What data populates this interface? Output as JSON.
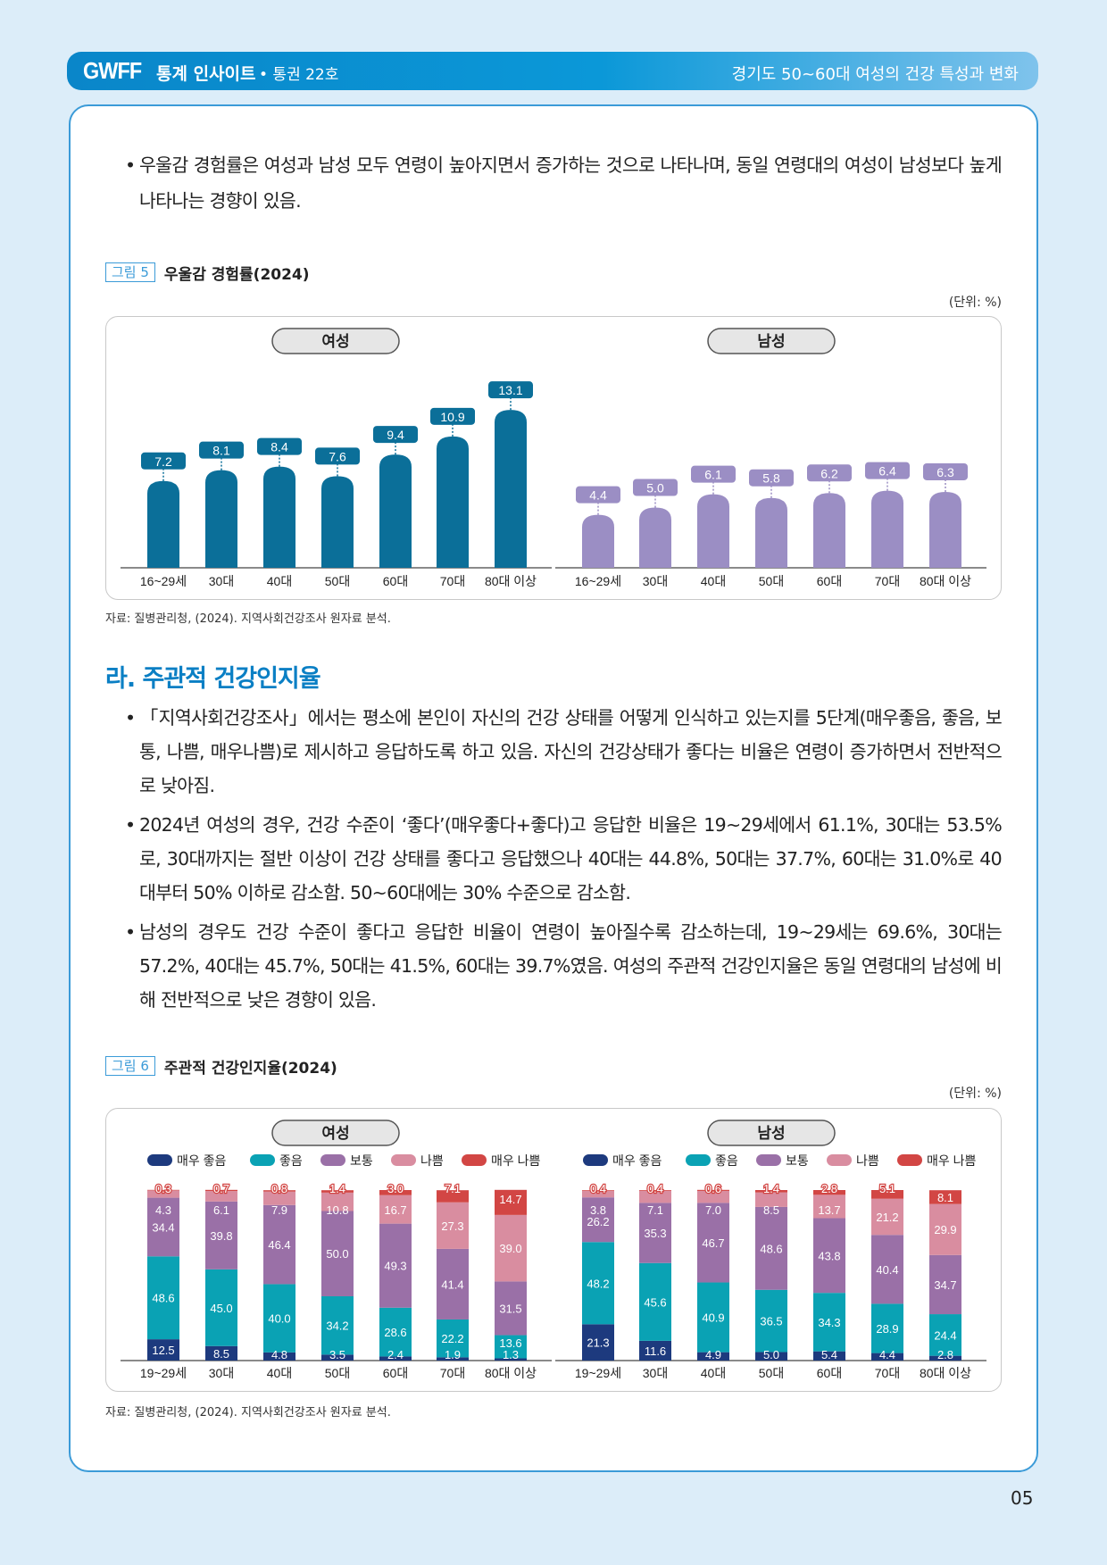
{
  "header": {
    "logo": "GWFF",
    "series": "통계 인사이트",
    "issue": "• 통권 22호",
    "title": "경기도 50~60대 여성의 건강 특성과 변화"
  },
  "intro_bullets": [
    "우울감 경험률은 여성과 남성 모두 연령이 높아지면서 증가하는 것으로 나타나며, 동일 연령대의 여성이 남성보다 높게 나타나는 경향이 있음."
  ],
  "figure5": {
    "tag": "그림 5",
    "title": "우울감 경험률(2024)",
    "unit": "(단위: %)",
    "source": "자료: 질병관리청, (2024). 지역사회건강조사 원자료 분석."
  },
  "section": {
    "heading": "라. 주관적 건강인지율",
    "bullets": [
      "「지역사회건강조사」에서는 평소에 본인이 자신의 건강 상태를 어떻게 인식하고 있는지를 5단계(매우좋음, 좋음, 보통, 나쁨, 매우나쁨)로 제시하고 응답하도록 하고 있음. 자신의 건강상태가 좋다는 비율은 연령이 증가하면서 전반적으로 낮아짐.",
      "2024년 여성의 경우, 건강 수준이 ‘좋다’(매우좋다+좋다)고 응답한 비율은 19~29세에서 61.1%, 30대는 53.5%로, 30대까지는 절반 이상이 건강 상태를 좋다고 응답했으나 40대는 44.8%, 50대는 37.7%, 60대는 31.0%로 40대부터 50% 이하로 감소함. 50~60대에는 30% 수준으로 감소함.",
      "남성의 경우도 건강 수준이 좋다고 응답한 비율이 연령이 높아질수록 감소하는데, 19~29세는 69.6%, 30대는 57.2%, 40대는 45.7%, 50대는 41.5%, 60대는 39.7%였음. 여성의 주관적 건강인지율은 동일 연령대의 남성에 비해 전반적으로 낮은 경향이 있음."
    ]
  },
  "figure6": {
    "tag": "그림 6",
    "title": "주관적 건강인지율(2024)",
    "unit": "(단위: %)",
    "source": "자료: 질병관리청, (2024). 지역사회건강조사 원자료 분석."
  },
  "page_number": "05",
  "chart_data": [
    {
      "type": "bar",
      "title": "우울감 경험률(2024)",
      "unit": "%",
      "panels": [
        {
          "name": "여성",
          "color": "#0b6f99",
          "categories": [
            "16~29세",
            "30대",
            "40대",
            "50대",
            "60대",
            "70대",
            "80대 이상"
          ],
          "values": [
            7.2,
            8.1,
            8.4,
            7.6,
            9.4,
            10.9,
            13.1
          ]
        },
        {
          "name": "남성",
          "color": "#9b8ec4",
          "categories": [
            "16~29세",
            "30대",
            "40대",
            "50대",
            "60대",
            "70대",
            "80대 이상"
          ],
          "values": [
            4.4,
            5.0,
            6.1,
            5.8,
            6.2,
            6.4,
            6.3
          ]
        }
      ]
    },
    {
      "type": "bar",
      "stacked": true,
      "title": "주관적 건강인지율(2024)",
      "unit": "%",
      "legend": "top",
      "series_names": [
        "매우 좋음",
        "좋음",
        "보통",
        "나쁨",
        "매우 나쁨"
      ],
      "colors": [
        "#1d3a7e",
        "#0aa2b4",
        "#9a70a7",
        "#d98da0",
        "#d24644"
      ],
      "panels": [
        {
          "name": "여성",
          "categories": [
            "19~29세",
            "30대",
            "40대",
            "50대",
            "60대",
            "70대",
            "80대 이상"
          ],
          "series": [
            {
              "name": "매우 좋음",
              "values": [
                12.5,
                8.5,
                4.8,
                3.5,
                2.4,
                1.9,
                1.3
              ]
            },
            {
              "name": "좋음",
              "values": [
                48.6,
                45.0,
                40.0,
                34.2,
                28.6,
                22.2,
                13.6
              ]
            },
            {
              "name": "보통",
              "values": [
                34.4,
                39.8,
                46.4,
                50.0,
                49.3,
                41.4,
                31.5
              ]
            },
            {
              "name": "나쁨",
              "values": [
                4.3,
                6.1,
                7.9,
                10.8,
                16.7,
                27.3,
                39.0
              ]
            },
            {
              "name": "매우 나쁨",
              "values": [
                0.3,
                0.7,
                0.8,
                1.4,
                3.0,
                7.1,
                14.7
              ]
            }
          ]
        },
        {
          "name": "남성",
          "categories": [
            "19~29세",
            "30대",
            "40대",
            "50대",
            "60대",
            "70대",
            "80대 이상"
          ],
          "series": [
            {
              "name": "매우 좋음",
              "values": [
                21.3,
                11.6,
                4.9,
                5.0,
                5.4,
                4.4,
                2.8
              ]
            },
            {
              "name": "좋음",
              "values": [
                48.2,
                45.6,
                40.9,
                36.5,
                34.3,
                28.9,
                24.4
              ]
            },
            {
              "name": "보통",
              "values": [
                26.2,
                35.3,
                46.7,
                48.6,
                43.8,
                40.4,
                34.7
              ]
            },
            {
              "name": "나쁨",
              "values": [
                3.8,
                7.1,
                7.0,
                8.5,
                13.7,
                21.2,
                29.9
              ]
            },
            {
              "name": "매우 나쁨",
              "values": [
                0.4,
                0.4,
                0.6,
                1.4,
                2.8,
                5.1,
                8.1
              ]
            }
          ]
        }
      ]
    }
  ]
}
